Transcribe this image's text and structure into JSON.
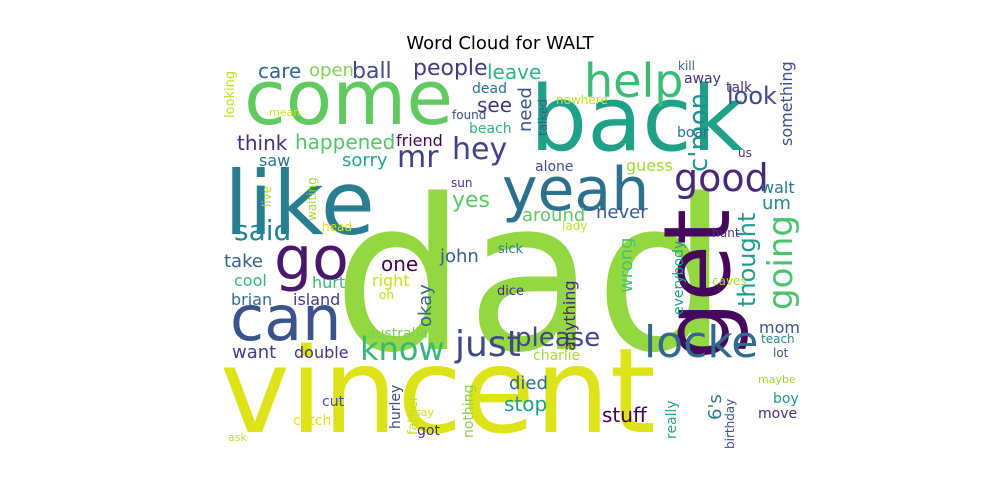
{
  "chart_data": {
    "type": "wordcloud",
    "title": "Word Cloud for WALT",
    "words": [
      {
        "text": "dad",
        "color": "#93d741",
        "orientation": "h"
      },
      {
        "text": "vincent",
        "color": "#dde318",
        "orientation": "h"
      },
      {
        "text": "come",
        "color": "#60ca60",
        "orientation": "h"
      },
      {
        "text": "back",
        "color": "#1fa187",
        "orientation": "h"
      },
      {
        "text": "like",
        "color": "#287d8e",
        "orientation": "h"
      },
      {
        "text": "yeah",
        "color": "#2d708e",
        "orientation": "h"
      },
      {
        "text": "get",
        "color": "#46085c",
        "orientation": "v"
      },
      {
        "text": "can",
        "color": "#3b528b",
        "orientation": "h"
      },
      {
        "text": "go",
        "color": "#48186a",
        "orientation": "h"
      },
      {
        "text": "help",
        "color": "#3cbb75",
        "orientation": "h"
      },
      {
        "text": "locke",
        "color": "#31688e",
        "orientation": "h"
      },
      {
        "text": "just",
        "color": "#3e4989",
        "orientation": "h"
      },
      {
        "text": "know",
        "color": "#35b779",
        "orientation": "h"
      },
      {
        "text": "good",
        "color": "#482878",
        "orientation": "h"
      },
      {
        "text": "going",
        "color": "#4ac16d",
        "orientation": "v"
      },
      {
        "text": "hey",
        "color": "#414487",
        "orientation": "h"
      },
      {
        "text": "mr",
        "color": "#433e85",
        "orientation": "h"
      },
      {
        "text": "said",
        "color": "#26828e",
        "orientation": "h"
      },
      {
        "text": "please",
        "color": "#404688",
        "orientation": "h"
      },
      {
        "text": "c'mon",
        "color": "#21918c",
        "orientation": "v"
      },
      {
        "text": "thought",
        "color": "#1e9b8a",
        "orientation": "v"
      },
      {
        "text": "look",
        "color": "#3e4a89",
        "orientation": "h"
      },
      {
        "text": "ball",
        "color": "#3f4889",
        "orientation": "h"
      },
      {
        "text": "people",
        "color": "#443983",
        "orientation": "h"
      },
      {
        "text": "care",
        "color": "#33638d",
        "orientation": "h"
      },
      {
        "text": "open",
        "color": "#7fd34e",
        "orientation": "h"
      },
      {
        "text": "leave",
        "color": "#2eb37c",
        "orientation": "h"
      },
      {
        "text": "happened",
        "color": "#52c569",
        "orientation": "h"
      },
      {
        "text": "think",
        "color": "#472c7a",
        "orientation": "h"
      },
      {
        "text": "friend",
        "color": "#440154",
        "orientation": "h"
      },
      {
        "text": "need",
        "color": "#3a538b",
        "orientation": "v"
      },
      {
        "text": "see",
        "color": "#453581",
        "orientation": "h"
      },
      {
        "text": "something",
        "color": "#3e4c8a",
        "orientation": "v"
      },
      {
        "text": "yes",
        "color": "#5ac864",
        "orientation": "h"
      },
      {
        "text": "um",
        "color": "#25848e",
        "orientation": "h"
      },
      {
        "text": "walt",
        "color": "#2a768e",
        "orientation": "h"
      },
      {
        "text": "never",
        "color": "#38598c",
        "orientation": "h"
      },
      {
        "text": "around",
        "color": "#5ec962",
        "orientation": "h"
      },
      {
        "text": "saw",
        "color": "#2c718e",
        "orientation": "h"
      },
      {
        "text": "sorry",
        "color": "#22a785",
        "orientation": "h"
      },
      {
        "text": "alone",
        "color": "#3d4d8a",
        "orientation": "h"
      },
      {
        "text": "guess",
        "color": "#a0da39",
        "orientation": "h"
      },
      {
        "text": "john",
        "color": "#365d8d",
        "orientation": "h"
      },
      {
        "text": "one",
        "color": "#440154",
        "orientation": "h"
      },
      {
        "text": "take",
        "color": "#34618d",
        "orientation": "h"
      },
      {
        "text": "cool",
        "color": "#35b779",
        "orientation": "h"
      },
      {
        "text": "hurt",
        "color": "#3aba76",
        "orientation": "h"
      },
      {
        "text": "right",
        "color": "#c8e020",
        "orientation": "h"
      },
      {
        "text": "brian",
        "color": "#2e6f8e",
        "orientation": "h"
      },
      {
        "text": "island",
        "color": "#453882",
        "orientation": "h"
      },
      {
        "text": "okay",
        "color": "#31678e",
        "orientation": "v"
      },
      {
        "text": "wrong",
        "color": "#4ac16d",
        "orientation": "v"
      },
      {
        "text": "anything",
        "color": "#482475",
        "orientation": "v"
      },
      {
        "text": "everybody",
        "color": "#20a386",
        "orientation": "v"
      },
      {
        "text": "mom",
        "color": "#3b528b",
        "orientation": "h"
      },
      {
        "text": "want",
        "color": "#433e85",
        "orientation": "h"
      },
      {
        "text": "double",
        "color": "#46337f",
        "orientation": "h"
      },
      {
        "text": "australia",
        "color": "#7ad151",
        "orientation": "h"
      },
      {
        "text": "charlie",
        "color": "#a5db36",
        "orientation": "h"
      },
      {
        "text": "died",
        "color": "#2f6b8e",
        "orientation": "h"
      },
      {
        "text": "stop",
        "color": "#1f9e89",
        "orientation": "h"
      },
      {
        "text": "stuff",
        "color": "#440154",
        "orientation": "h"
      },
      {
        "text": "cut",
        "color": "#3b528b",
        "orientation": "h"
      },
      {
        "text": "catch",
        "color": "#e2e418",
        "orientation": "h"
      },
      {
        "text": "hurley",
        "color": "#3e4a89",
        "orientation": "v"
      },
      {
        "text": "father",
        "color": "#c2df23",
        "orientation": "v"
      },
      {
        "text": "nothing",
        "color": "#84d44b",
        "orientation": "v"
      },
      {
        "text": "really",
        "color": "#22a884",
        "orientation": "v"
      },
      {
        "text": "6's",
        "color": "#2a788e",
        "orientation": "v"
      },
      {
        "text": "birthday",
        "color": "#3d4e8a",
        "orientation": "v"
      },
      {
        "text": "boy",
        "color": "#1e9c89",
        "orientation": "h"
      },
      {
        "text": "move",
        "color": "#472d7b",
        "orientation": "h"
      },
      {
        "text": "got",
        "color": "#46307e",
        "orientation": "h"
      },
      {
        "text": "say",
        "color": "#d8e219",
        "orientation": "h"
      },
      {
        "text": "maybe",
        "color": "#9bd93c",
        "orientation": "h"
      },
      {
        "text": "lot",
        "color": "#3b528b",
        "orientation": "h"
      },
      {
        "text": "teach",
        "color": "#25848e",
        "orientation": "h"
      },
      {
        "text": "dice",
        "color": "#472a7a",
        "orientation": "h"
      },
      {
        "text": "sick",
        "color": "#2a788e",
        "orientation": "h"
      },
      {
        "text": "lady",
        "color": "#c0df25",
        "orientation": "h"
      },
      {
        "text": "hunt",
        "color": "#46337f",
        "orientation": "h"
      },
      {
        "text": "caves",
        "color": "#a8db34",
        "orientation": "h"
      },
      {
        "text": "oh",
        "color": "#c2df23",
        "orientation": "h"
      },
      {
        "text": "ask",
        "color": "#c8e020",
        "orientation": "h"
      },
      {
        "text": "head",
        "color": "#d8e219",
        "orientation": "h"
      },
      {
        "text": "sun",
        "color": "#472d7b",
        "orientation": "h"
      },
      {
        "text": "live",
        "color": "#b5de2b",
        "orientation": "v"
      },
      {
        "text": "waiting",
        "color": "#9fda3a",
        "orientation": "v"
      },
      {
        "text": "looking",
        "color": "#c0df25",
        "orientation": "v"
      },
      {
        "text": "mean",
        "color": "#d0e11c",
        "orientation": "h"
      },
      {
        "text": "dead",
        "color": "#2c728e",
        "orientation": "h"
      },
      {
        "text": "found",
        "color": "#3e4989",
        "orientation": "h"
      },
      {
        "text": "beach",
        "color": "#2fb47c",
        "orientation": "h"
      },
      {
        "text": "talked",
        "color": "#365c8d",
        "orientation": "v"
      },
      {
        "text": "nowhere",
        "color": "#c8e020",
        "orientation": "h"
      },
      {
        "text": "kill",
        "color": "#31688e",
        "orientation": "h"
      },
      {
        "text": "away",
        "color": "#46327e",
        "orientation": "h"
      },
      {
        "text": "talk",
        "color": "#453781",
        "orientation": "h"
      },
      {
        "text": "boar",
        "color": "#2c718e",
        "orientation": "h"
      },
      {
        "text": "us",
        "color": "#472c7a",
        "orientation": "h"
      }
    ]
  }
}
